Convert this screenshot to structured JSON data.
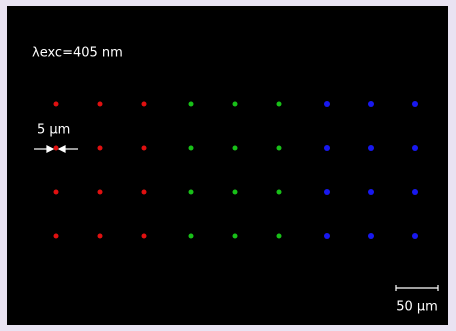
{
  "annotations": {
    "excitation": "λexc=405 nm",
    "spot_size": "5 µm",
    "scale_bar": "50 µm"
  }
}
